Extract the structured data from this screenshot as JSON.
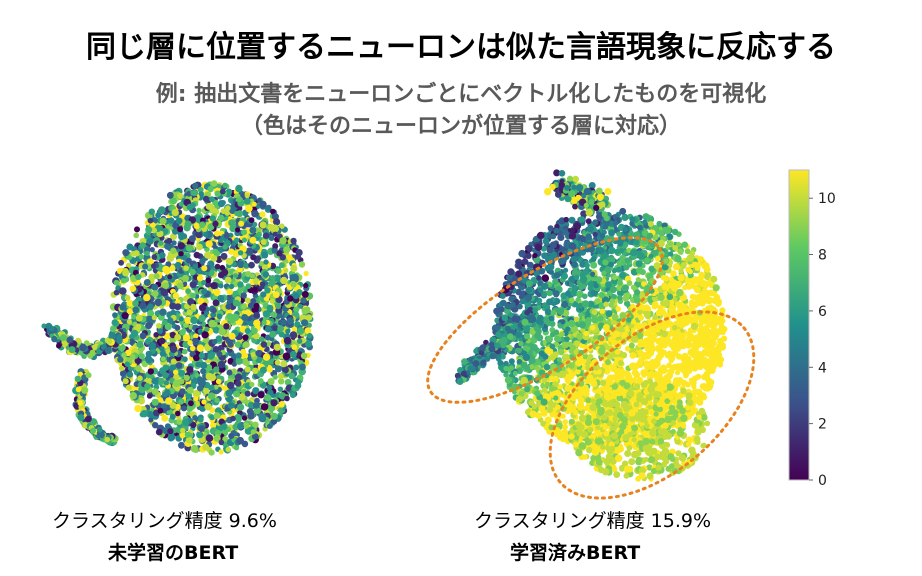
{
  "header": {
    "title": "同じ層に位置するニューロンは似た言語現象に反応する",
    "subtitle_line1": "例: 抽出文書をニューロンごとにベクトル化したものを可視化",
    "subtitle_line2": "（色はそのニューロンが位置する層に対応）"
  },
  "chart_data": {
    "type": "scatter",
    "title": "同じ層に位置するニューロンは似た言語現象に反応する",
    "panels": [
      {
        "name": "未学習のBERT",
        "caption": "クラスタリング精度 9.6%",
        "clustering_accuracy_percent": 9.6
      },
      {
        "name": "学習済みBERT",
        "caption": "クラスタリング精度 15.9%",
        "clustering_accuracy_percent": 15.9
      }
    ],
    "colorbar": {
      "colormap": "viridis",
      "range": [
        0,
        11
      ],
      "ticks": [
        "0",
        "2",
        "4",
        "6",
        "8",
        "10"
      ]
    }
  },
  "colors": {
    "ellipse": "#e8821e",
    "colormap": [
      "#440154",
      "#3b528b",
      "#21918c",
      "#5ec962",
      "#fde725"
    ]
  }
}
